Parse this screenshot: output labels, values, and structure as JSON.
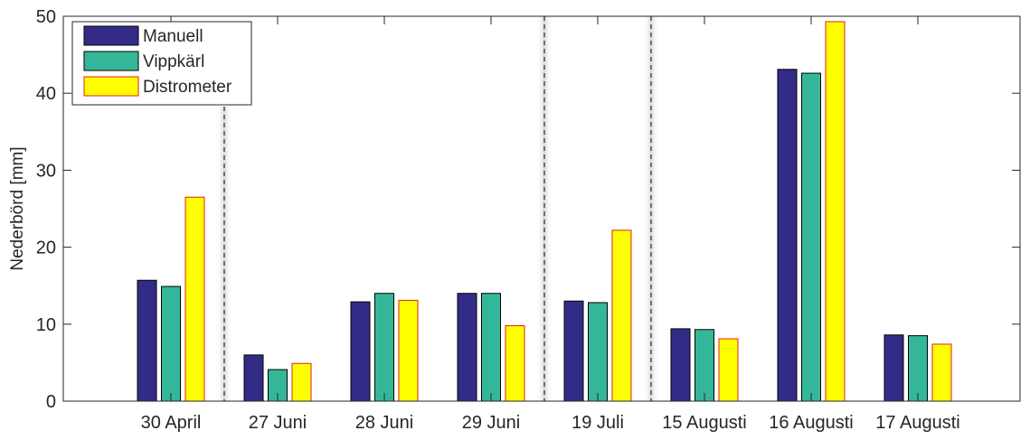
{
  "chart_data": {
    "type": "bar",
    "categories": [
      "30 April",
      "27 Juni",
      "28 Juni",
      "29 Juni",
      "19 Juli",
      "15 Augusti",
      "16 Augusti",
      "17 Augusti"
    ],
    "series": [
      {
        "name": "Manuell",
        "values": [
          15.7,
          6.0,
          12.9,
          14.0,
          13.0,
          9.4,
          43.1,
          8.6
        ],
        "color": "#332c86",
        "edge": "#000000"
      },
      {
        "name": "Vippkärl",
        "values": [
          14.9,
          4.1,
          14.0,
          14.0,
          12.8,
          9.3,
          42.6,
          8.5
        ],
        "color": "#34b799",
        "edge": "#000000"
      },
      {
        "name": "Distrometer",
        "values": [
          26.5,
          4.9,
          13.1,
          9.8,
          22.2,
          8.1,
          49.3,
          7.4
        ],
        "color": "#ffff00",
        "edge": "#e0201d"
      }
    ],
    "title": "",
    "xlabel": "",
    "ylabel": "Nederbörd [mm]",
    "ylim": [
      0,
      50
    ],
    "yticks": [
      0,
      10,
      20,
      30,
      40,
      50
    ],
    "grid": false,
    "legend_position": "top-left",
    "separators_after": [
      "30 April",
      "29 Juni",
      "19 Juli"
    ]
  }
}
